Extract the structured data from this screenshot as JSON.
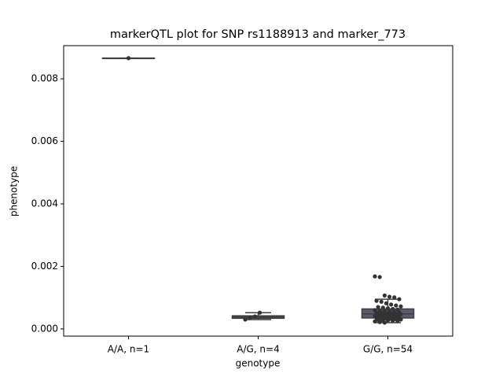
{
  "chart_data": {
    "type": "box",
    "title": "markerQTL plot for SNP rs1188913 and marker_773",
    "x_label": "genotype",
    "y_label": "phenotype",
    "categories": [
      "A/A, n=1",
      "A/G, n=4",
      "G/G, n=54"
    ],
    "boxes": [
      {
        "min": 0.00866,
        "q1": 0.00866,
        "median": 0.00866,
        "q3": 0.00866,
        "max": 0.00866
      },
      {
        "min": 0.0003,
        "q1": 0.00034,
        "median": 0.00038,
        "q3": 0.00042,
        "max": 0.00052
      },
      {
        "min": 0.0002,
        "q1": 0.00035,
        "median": 0.00048,
        "q3": 0.00064,
        "max": 0.00095
      }
    ],
    "points": [
      [
        0.00866
      ],
      [
        0.0003,
        0.00036,
        0.0004,
        0.00052
      ],
      [
        0.00168,
        0.00166,
        0.00107,
        0.00103,
        0.00101,
        0.00095,
        0.0009,
        0.00087,
        0.00082,
        0.00078,
        0.00075,
        0.00072,
        0.0007,
        0.00068,
        0.00066,
        0.00064,
        0.00062,
        0.0006,
        0.00058,
        0.00057,
        0.00055,
        0.00054,
        0.00053,
        0.00052,
        0.00051,
        0.0005,
        0.00049,
        0.00048,
        0.00047,
        0.00046,
        0.00045,
        0.00044,
        0.00043,
        0.00042,
        0.00041,
        0.0004,
        0.00039,
        0.00038,
        0.00037,
        0.00036,
        0.00035,
        0.00034,
        0.00033,
        0.00032,
        0.00031,
        0.0003,
        0.00029,
        0.00028,
        0.00027,
        0.00026,
        0.00025,
        0.00024,
        0.00022,
        0.0002
      ]
    ],
    "box_color": "#5a5a6e",
    "line_color": "#3f3f3f",
    "point_color": "#333333",
    "ylim": [
      -0.00023,
      0.00906
    ],
    "yticks": [
      {
        "value": 0,
        "label": "0.000"
      },
      {
        "value": 0.002,
        "label": "0.002"
      },
      {
        "value": 0.004,
        "label": "0.004"
      },
      {
        "value": 0.006,
        "label": "0.006"
      },
      {
        "value": 0.008,
        "label": "0.008"
      }
    ]
  }
}
